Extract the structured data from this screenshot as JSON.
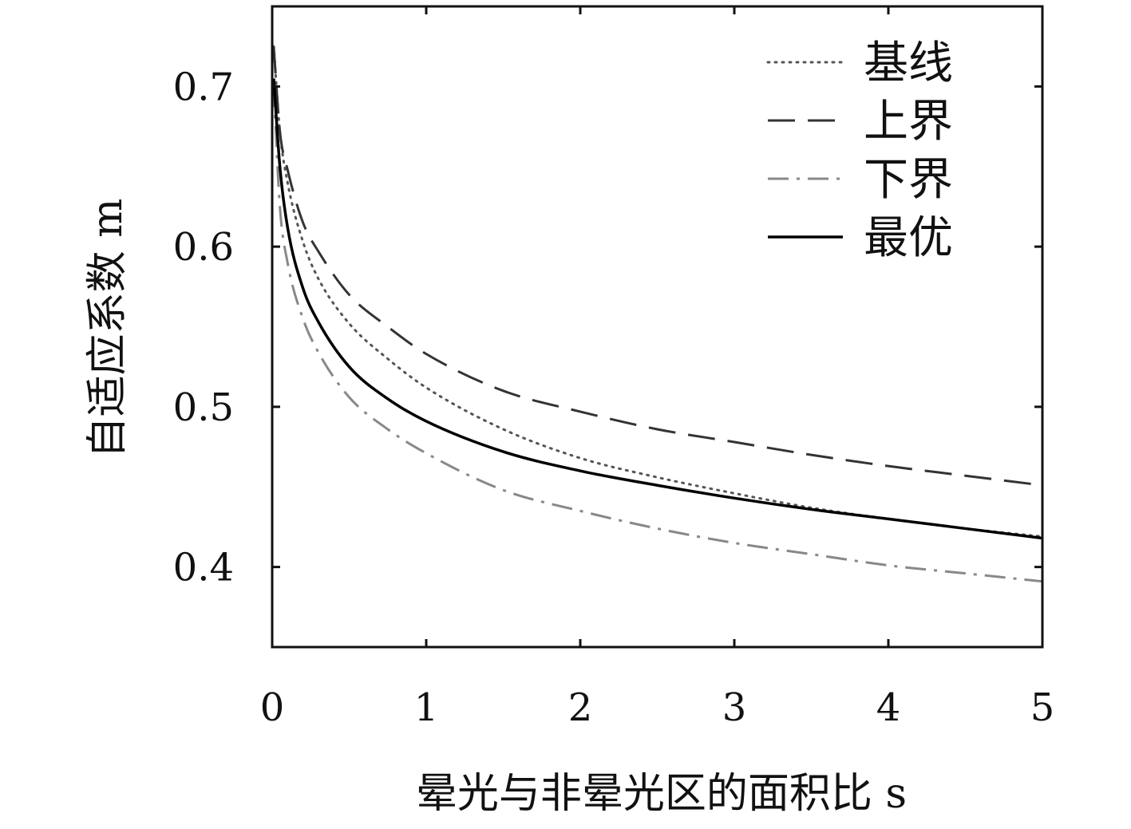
{
  "chart_data": {
    "type": "line",
    "xlabel": "晕光与非晕光区的面积比 s",
    "ylabel": "自适应系数 m",
    "xlim": [
      0,
      5
    ],
    "ylim": [
      0.35,
      0.75
    ],
    "xticks": [
      0,
      1,
      2,
      3,
      4,
      5
    ],
    "xtick_labels": [
      "0",
      "1",
      "2",
      "3",
      "4",
      "5"
    ],
    "yticks": [
      0.4,
      0.5,
      0.6,
      0.7
    ],
    "ytick_labels": [
      "0.4",
      "0.5",
      "0.6",
      "0.7"
    ],
    "grid": false,
    "legend_position": "top-right",
    "x": [
      0.01,
      0.05,
      0.1,
      0.2,
      0.3,
      0.5,
      0.75,
      1,
      1.5,
      2,
      2.5,
      3,
      3.5,
      4,
      4.5,
      5
    ],
    "series": [
      {
        "name": "基线",
        "style": "dotted",
        "color": "#555555",
        "values": [
          0.725,
          0.672,
          0.64,
          0.603,
          0.58,
          0.552,
          0.53,
          0.512,
          0.486,
          0.468,
          0.456,
          0.446,
          0.437,
          0.43,
          0.424,
          0.419
        ]
      },
      {
        "name": "上界",
        "style": "dashed",
        "color": "#333333",
        "values": [
          0.725,
          0.672,
          0.648,
          0.615,
          0.597,
          0.57,
          0.55,
          0.533,
          0.51,
          0.497,
          0.486,
          0.478,
          0.47,
          0.463,
          0.457,
          0.451
        ]
      },
      {
        "name": "下界",
        "style": "dashdot",
        "color": "#888888",
        "values": [
          0.7,
          0.625,
          0.59,
          0.555,
          0.534,
          0.506,
          0.486,
          0.471,
          0.448,
          0.435,
          0.424,
          0.415,
          0.408,
          0.401,
          0.396,
          0.391
        ]
      },
      {
        "name": "最优",
        "style": "solid",
        "color": "#000000",
        "values": [
          0.705,
          0.65,
          0.612,
          0.574,
          0.553,
          0.525,
          0.505,
          0.491,
          0.472,
          0.46,
          0.451,
          0.443,
          0.436,
          0.43,
          0.424,
          0.418
        ]
      }
    ]
  }
}
